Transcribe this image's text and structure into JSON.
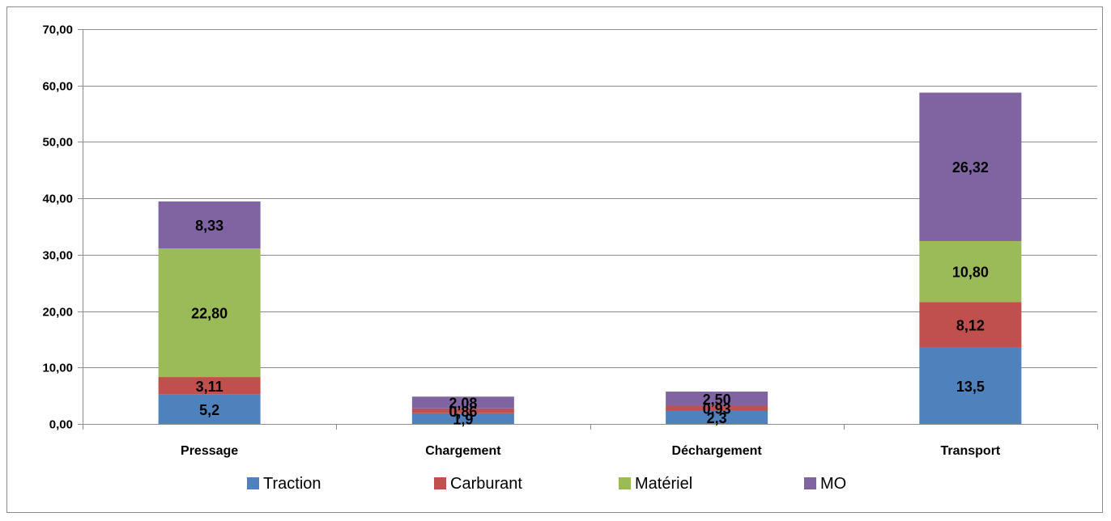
{
  "chart_data": {
    "type": "bar",
    "stacked": true,
    "categories": [
      "Pressage",
      "Chargement",
      "Déchargement",
      "Transport"
    ],
    "series": [
      {
        "name": "Traction",
        "color": "#4F81BD",
        "values": [
          5.2,
          1.9,
          2.3,
          13.5
        ],
        "labels": [
          "5,2",
          "1,9",
          "2,3",
          "13,5"
        ]
      },
      {
        "name": "Carburant",
        "color": "#C0504D",
        "values": [
          3.11,
          0.86,
          0.93,
          8.12
        ],
        "labels": [
          "3,11",
          "0,86",
          "0,93",
          "8,12"
        ]
      },
      {
        "name": "Matériel",
        "color": "#9BBB59",
        "values": [
          22.8,
          0,
          0,
          10.8
        ],
        "labels": [
          "22,80",
          "",
          "",
          "10,80"
        ]
      },
      {
        "name": "MO",
        "color": "#8064A2",
        "values": [
          8.33,
          2.08,
          2.5,
          26.32
        ],
        "labels": [
          "8,33",
          "2,08",
          "2,50",
          "26,32"
        ]
      }
    ],
    "ylim": [
      0,
      70
    ],
    "yticks": [
      0,
      10,
      20,
      30,
      40,
      50,
      60,
      70
    ],
    "ytick_labels": [
      "0,00",
      "10,00",
      "20,00",
      "30,00",
      "40,00",
      "50,00",
      "60,00",
      "70,00"
    ],
    "grid": true,
    "legend_position": "bottom",
    "title": "",
    "xlabel": "",
    "ylabel": ""
  }
}
